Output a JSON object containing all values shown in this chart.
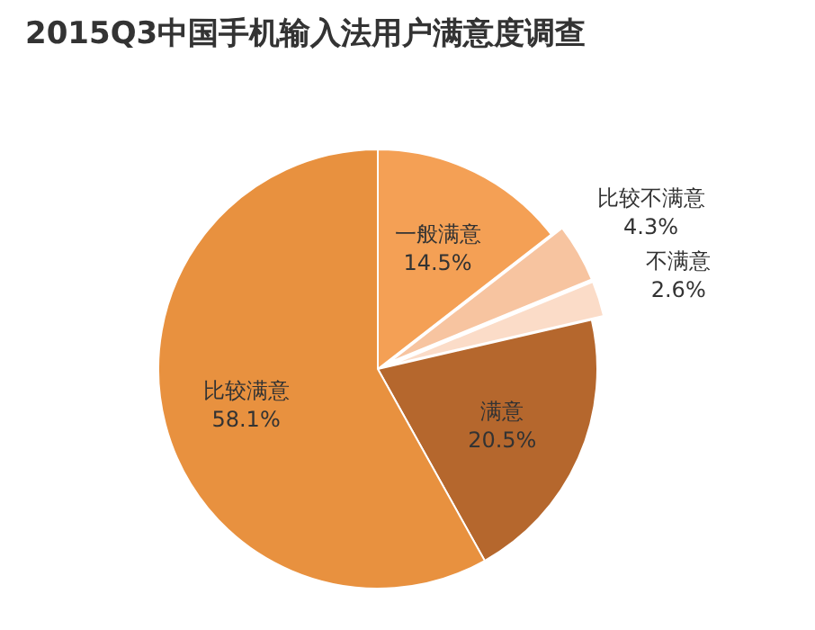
{
  "chart_data": {
    "type": "pie",
    "title": "2015Q3中国手机输入法用户满意度调查",
    "categories": [
      "一般满意",
      "比较不满意",
      "不满意",
      "满意",
      "比较满意"
    ],
    "values": [
      14.5,
      4.3,
      2.6,
      20.5,
      58.1
    ],
    "value_labels": [
      "14.5%",
      "4.3%",
      "2.6%",
      "20.5%",
      "58.1%"
    ],
    "colors": [
      "#f4a055",
      "#f7c4a0",
      "#fbdcc8",
      "#b5672d",
      "#e8913f"
    ]
  }
}
